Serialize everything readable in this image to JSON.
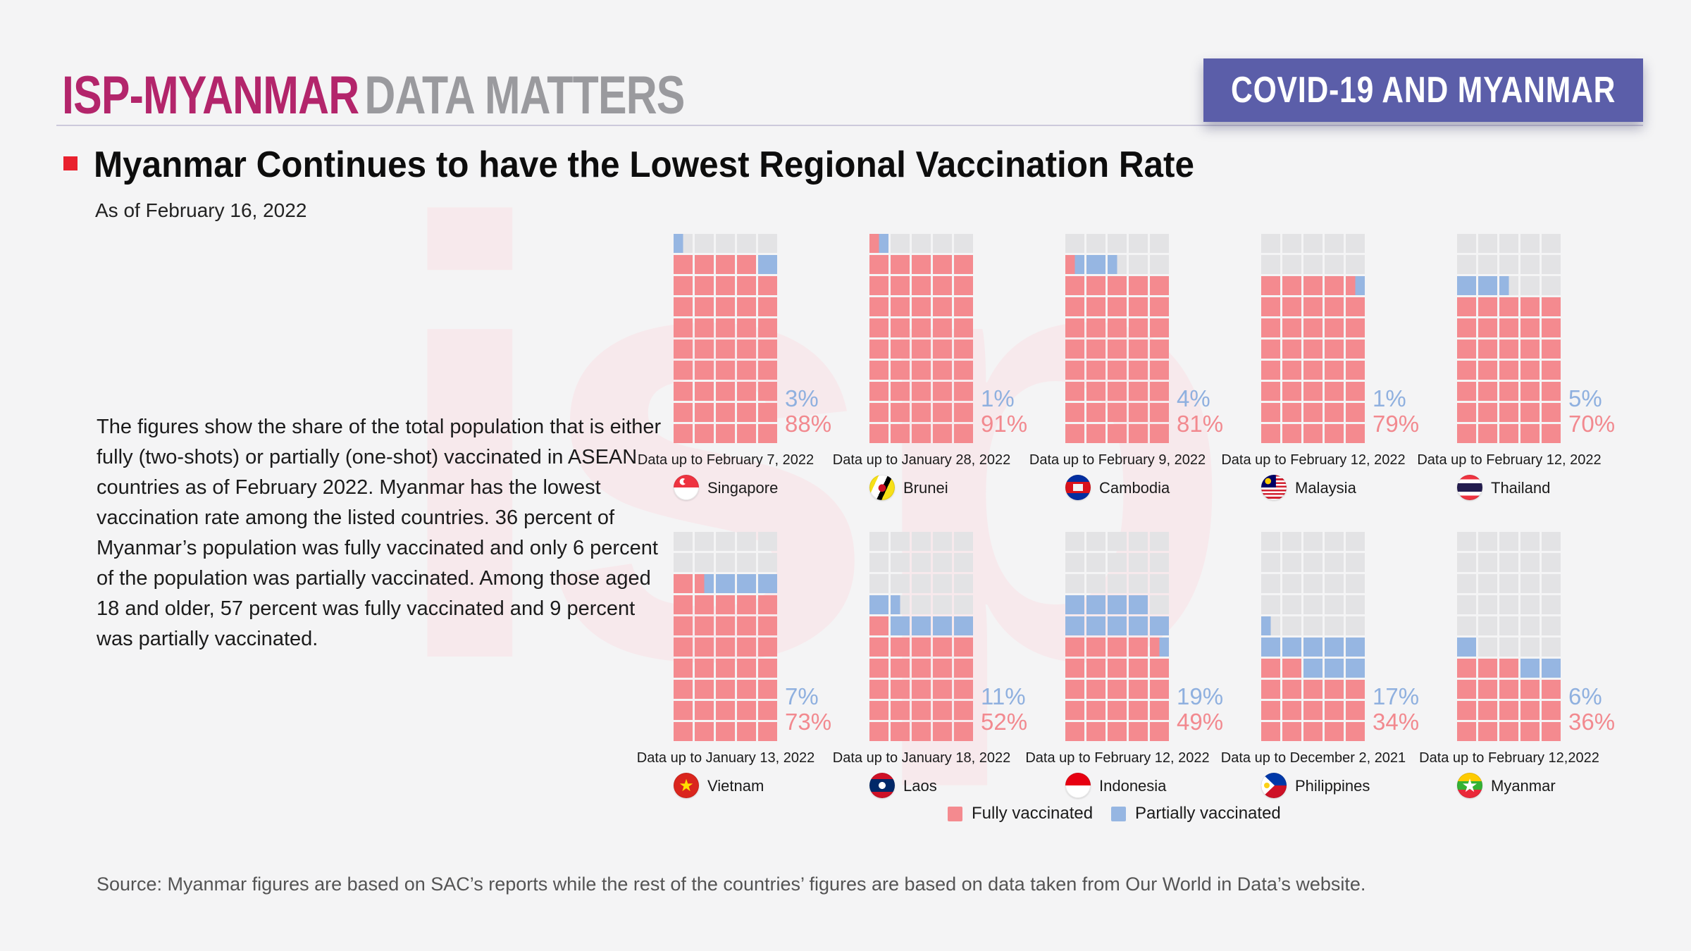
{
  "header": {
    "brand_primary": "ISP-MYANMAR",
    "brand_secondary": "DATA MATTERS",
    "banner": "COVID-19 AND MYANMAR"
  },
  "title": {
    "text": "Myanmar Continues to have the Lowest Regional Vaccination Rate",
    "subtitle": "As of February 16, 2022"
  },
  "description": "The figures show the share of the total population that is either fully (two-shots) or partially (one-shot) vaccinated in ASEAN countries as of February 2022. Myanmar has the lowest vaccination rate among the listed countries. 36 percent of Myanmar’s population was fully vaccinated and only 6 percent of the population was partially vaccinated. Among those aged 18 and older, 57 percent was fully vaccinated and 9 percent was partially vaccinated.",
  "legend": {
    "fully": "Fully vaccinated",
    "partially": "Partially vaccinated"
  },
  "source": "Source: Myanmar figures are based on SAC’s reports while the rest of the countries’ figures are based on data taken from Our World in Data’s website.",
  "watermark_text": "isp",
  "colors": {
    "fully": "#f48a8f",
    "partially": "#96b6e2",
    "empty": "#e3e3e5",
    "pct_full_text": "#f2898f",
    "pct_partial_text": "#8fb0df",
    "brand_primary": "#b3256b",
    "brand_secondary": "#9a9a9e",
    "banner_bg": "#5b5ea9",
    "accent_red": "#e9212e"
  },
  "chart_data": {
    "type": "waffle",
    "title": "Share of total population fully / partially vaccinated in ASEAN countries",
    "grid": {
      "columns": 5,
      "rows": 10,
      "percent_per_cell": 2
    },
    "legend_position": "bottom",
    "series": [
      {
        "country": "Singapore",
        "flag": "singapore",
        "fully_pct": 88,
        "partially_pct": 3,
        "data_up_to": "Data up to February 7, 2022"
      },
      {
        "country": "Brunei",
        "flag": "brunei",
        "fully_pct": 91,
        "partially_pct": 1,
        "data_up_to": "Data up to January 28, 2022"
      },
      {
        "country": "Cambodia",
        "flag": "cambodia",
        "fully_pct": 81,
        "partially_pct": 4,
        "data_up_to": "Data up to February 9, 2022"
      },
      {
        "country": "Malaysia",
        "flag": "malaysia",
        "fully_pct": 79,
        "partially_pct": 1,
        "data_up_to": "Data up to February 12, 2022"
      },
      {
        "country": "Thailand",
        "flag": "thailand",
        "fully_pct": 70,
        "partially_pct": 5,
        "data_up_to": "Data up to February 12, 2022"
      },
      {
        "country": "Vietnam",
        "flag": "vietnam",
        "fully_pct": 73,
        "partially_pct": 7,
        "data_up_to": "Data up to January 13, 2022"
      },
      {
        "country": "Laos",
        "flag": "laos",
        "fully_pct": 52,
        "partially_pct": 11,
        "data_up_to": "Data up to January 18, 2022"
      },
      {
        "country": "Indonesia",
        "flag": "indonesia",
        "fully_pct": 49,
        "partially_pct": 19,
        "data_up_to": "Data up to February 12, 2022"
      },
      {
        "country": "Philippines",
        "flag": "philippines",
        "fully_pct": 34,
        "partially_pct": 17,
        "data_up_to": "Data up to December 2, 2021"
      },
      {
        "country": "Myanmar",
        "flag": "myanmar",
        "fully_pct": 36,
        "partially_pct": 6,
        "data_up_to": "Data up to February 12,2022"
      }
    ]
  },
  "layout_values": {
    "column_lefts": [
      956,
      1234,
      1512,
      1790,
      2068
    ],
    "row_tops": [
      332,
      755
    ],
    "legend_lefts": [
      1345,
      1577
    ]
  }
}
